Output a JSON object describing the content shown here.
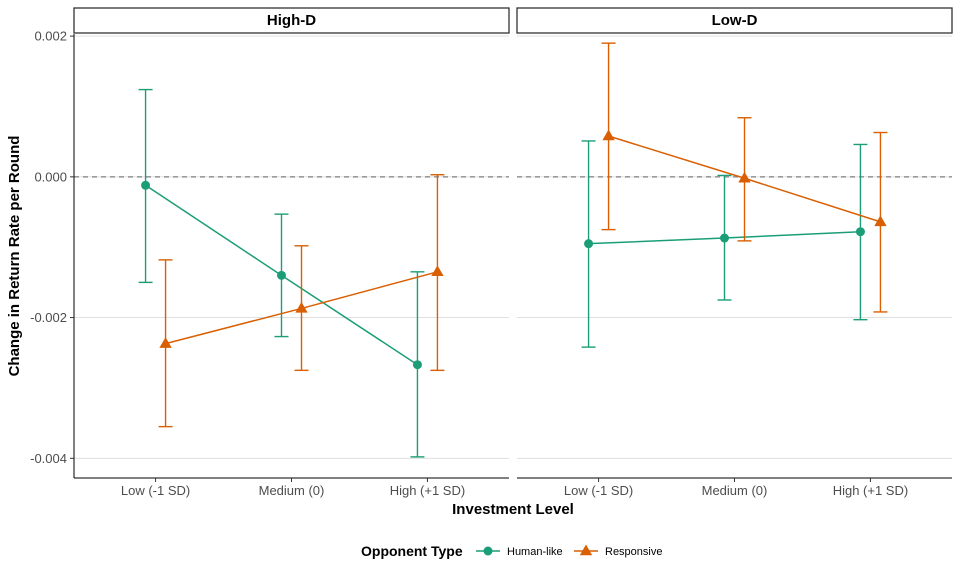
{
  "chart_data": {
    "type": "line",
    "categories": [
      "Low (-1 SD)",
      "Medium (0)",
      "High (+1 SD)"
    ],
    "xlabel": "Investment Level",
    "ylabel": "Change in Return Rate per Round",
    "ylim": [
      -0.00428,
      0.00203
    ],
    "yticks": [
      0.002,
      0.0,
      -0.002,
      -0.004
    ],
    "ytick_labels": [
      "0.002",
      "0.000",
      "-0.002",
      "-0.004"
    ],
    "reference_line": 0,
    "grid": true,
    "legend": {
      "title": "Opponent Type",
      "placement": "bottom",
      "entries": [
        "Human-like",
        "Responsive"
      ]
    },
    "colors": {
      "Human-like": "#1b9e77",
      "Responsive": "#d95f02"
    },
    "markers": {
      "Human-like": "circle",
      "Responsive": "triangle"
    },
    "panels": [
      {
        "label": "High-D",
        "series": [
          {
            "name": "Human-like",
            "values": [
              -0.00012,
              -0.0014,
              -0.00267
            ],
            "lower": [
              -0.0015,
              -0.00227,
              -0.00398
            ],
            "upper": [
              0.00124,
              -0.00053,
              -0.00135
            ]
          },
          {
            "name": "Responsive",
            "values": [
              -0.00237,
              -0.00187,
              -0.00135
            ],
            "lower": [
              -0.00355,
              -0.00275,
              -0.00275
            ],
            "upper": [
              -0.00118,
              -0.00098,
              3e-05
            ]
          }
        ]
      },
      {
        "label": "Low-D",
        "series": [
          {
            "name": "Human-like",
            "values": [
              -0.00095,
              -0.00087,
              -0.00078
            ],
            "lower": [
              -0.00242,
              -0.00175,
              -0.00203
            ],
            "upper": [
              0.00051,
              2e-05,
              0.00046
            ]
          },
          {
            "name": "Responsive",
            "values": [
              0.00058,
              -2e-05,
              -0.00064
            ],
            "lower": [
              -0.00075,
              -0.00091,
              -0.00192
            ],
            "upper": [
              0.0019,
              0.00084,
              0.00063
            ]
          }
        ]
      }
    ]
  }
}
